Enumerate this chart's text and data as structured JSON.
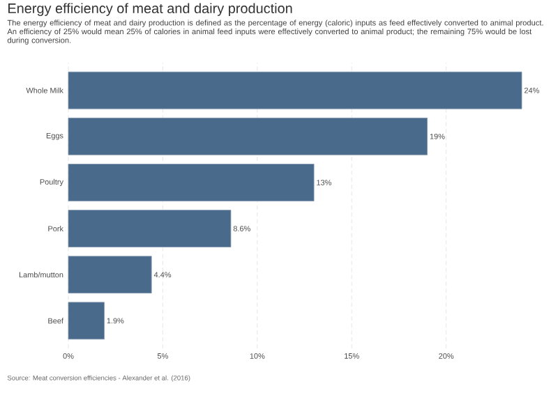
{
  "chart_data": {
    "type": "bar",
    "orientation": "horizontal",
    "title": "Energy efficiency of meat and dairy production",
    "subtitle": "The energy efficiency of meat and dairy production is defined as the percentage of energy (caloric) inputs as feed effectively converted to animal product. An efficiency of 25% would mean 25% of calories in animal feed inputs were effectively converted to animal product; the remaining 75% would be lost during conversion.",
    "categories": [
      "Whole Milk",
      "Eggs",
      "Poultry",
      "Pork",
      "Lamb/mutton",
      "Beef"
    ],
    "values": [
      24,
      19,
      13,
      8.6,
      4.4,
      1.9
    ],
    "value_labels": [
      "24%",
      "19%",
      "13%",
      "8.6%",
      "4.4%",
      "1.9%"
    ],
    "color": "#4a6a8c",
    "xlim": [
      0,
      24
    ],
    "xticks": [
      {
        "value": 0,
        "label": "0%"
      },
      {
        "value": 5,
        "label": "5%"
      },
      {
        "value": 10,
        "label": "10%"
      },
      {
        "value": 15,
        "label": "15%"
      },
      {
        "value": 20,
        "label": "20%"
      }
    ],
    "grid": "x",
    "annotations": [
      "Source: Meat conversion efficiencies - Alexander et al. (2016)"
    ]
  }
}
